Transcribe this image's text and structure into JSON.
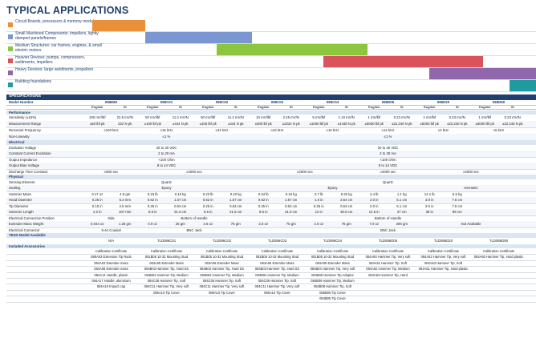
{
  "title": "TYPICAL APPLICATIONS",
  "applications": [
    {
      "label": "Circuit Boards, processors & memory modules",
      "color": "#e8913a",
      "bar_start": 0.0,
      "bar_end": 0.12
    },
    {
      "label": "Small Machined Components: impellers, lightly damped panels/frames",
      "color": "#7b97d2",
      "bar_start": 0.12,
      "bar_end": 0.36
    },
    {
      "label": "Medium Structures: car frames, engines, & small electric motors",
      "color": "#8cc63f",
      "bar_start": 0.28,
      "bar_end": 0.62
    },
    {
      "label": "Heavier Devices: pumps, compressors, weldments, impellers",
      "color": "#d9535a",
      "bar_start": 0.52,
      "bar_end": 0.88
    },
    {
      "label": "Heavy Devices: large weldments, propellers",
      "color": "#9067ad",
      "bar_start": 0.76,
      "bar_end": 1.0
    },
    {
      "label": "Building foundations",
      "color": "#1f9ba0",
      "bar_start": 0.94,
      "bar_end": 1.0
    }
  ],
  "specs": {
    "band": "SPECIFICATIONS",
    "model_label": "Model Number",
    "models": [
      "086E80",
      "086C01",
      "086C02",
      "086C03",
      "086C04",
      "086D05",
      "086D20",
      "086D50"
    ],
    "english": "English",
    "si": "SI",
    "sections": {
      "performance": "Performance",
      "electrical": "Electrical",
      "physical": "Physical",
      "teds": "TEDS Model Available",
      "accessories": "Included Accessories"
    },
    "perf_rows": [
      {
        "label": "Sensitivity (±15%)",
        "cells": [
          "100 mV/lbf",
          "22.5 mV/N",
          "50 mV/lbf",
          "11.2 mV/N",
          "50 mV/lbf",
          "11.2 mV/N",
          "10 mV/lbf",
          "2.25 mV/N",
          "5 mV/lbf",
          "1.10 mV/N",
          "1 mV/lbf",
          "0.23 mV/N",
          "1 mV/lbf",
          "0.23 mV/N",
          "1 mV/lbf",
          "0.23 mV/N"
        ]
      },
      {
        "label": "Measurement Range",
        "cells": [
          "±50 lbf pk",
          "222 N pk",
          "±100 lbf pk",
          "±444 N pk",
          "±100 lbf pk",
          "±444 N pk",
          "±500 lbf pk",
          "±2224 N pk",
          "±1000 lbf pk",
          "±4448 N pk",
          "±5000 lbf pk",
          "±22,240 N pk",
          "±5000 lbf pk",
          "±22,240 N pk",
          "±5000 lbf pk",
          "±22,240 N pk"
        ]
      },
      {
        "label": "Resonant Frequency",
        "spans": [
          {
            "text": "≥100 kHz",
            "from": 0,
            "to": 1
          },
          {
            "text": "≥15 kHz",
            "from": 2,
            "to": 3
          },
          {
            "text": "≥22 kHz",
            "from": 4,
            "to": 5
          },
          {
            "text": "≥22 kHz",
            "from": 6,
            "to": 7
          },
          {
            "text": "≥15 kHz",
            "from": 8,
            "to": 9
          },
          {
            "text": "≥12 kHz",
            "from": 10,
            "to": 11
          },
          {
            "text": "≥2 kHz",
            "from": 12,
            "to": 13
          },
          {
            "text": "≥5 kHz",
            "from": 14,
            "to": 15
          }
        ]
      },
      {
        "label": "Non-Linearity",
        "spans": [
          {
            "text": "≤1 %",
            "from": 0,
            "to": 5
          },
          {
            "text": "≤1 %",
            "from": 6,
            "to": 15
          }
        ]
      }
    ],
    "elec_rows": [
      {
        "label": "Excitation Voltage",
        "spans": [
          {
            "text": "20 to 30 VDC",
            "from": 0,
            "to": 5
          },
          {
            "text": "20 to 30 VDC",
            "from": 6,
            "to": 15
          }
        ]
      },
      {
        "label": "Constant Current Excitation",
        "spans": [
          {
            "text": "2 to 20 mA",
            "from": 0,
            "to": 5
          },
          {
            "text": "2 to 20 mA",
            "from": 6,
            "to": 15
          }
        ]
      },
      {
        "label": "Output Impedance",
        "spans": [
          {
            "text": "<100 Ohm",
            "from": 0,
            "to": 5
          },
          {
            "text": "<100 Ohm",
            "from": 6,
            "to": 15
          }
        ]
      },
      {
        "label": "Output Bias Voltage",
        "spans": [
          {
            "text": "8 to 14 VDC",
            "from": 0,
            "to": 5
          },
          {
            "text": "8 to 14 VDC",
            "from": 6,
            "to": 15
          }
        ]
      },
      {
        "label": "Discharge Time Constant",
        "spans": [
          {
            "text": "≥500 sec",
            "from": 0,
            "to": 1
          },
          {
            "text": "≥2000 sec",
            "from": 2,
            "to": 5
          },
          {
            "text": "≥2000 sec",
            "from": 6,
            "to": 9
          },
          {
            "text": "≥2000 sec",
            "from": 10,
            "to": 11
          },
          {
            "text": "≥2000 sec",
            "from": 12,
            "to": 15
          }
        ]
      }
    ],
    "phys_rows": [
      {
        "label": "Sensing Element",
        "spans": [
          {
            "text": "Quartz",
            "from": 0,
            "to": 5
          },
          {
            "text": "Quartz",
            "from": 6,
            "to": 15
          }
        ]
      },
      {
        "label": "Sealing",
        "spans": [
          {
            "text": "Epoxy",
            "from": 0,
            "to": 5
          },
          {
            "text": "Epoxy",
            "from": 6,
            "to": 11
          },
          {
            "text": "Hermetic",
            "from": 12,
            "to": 15
          }
        ]
      },
      {
        "label": "Hammer Mass",
        "cells": [
          "0.17 oz",
          "4.8 gm",
          "0.23 lb",
          "0.10 kg",
          "0.23 lb",
          "0.10 kg",
          "0.34 lb",
          "0.16 kg",
          "0.7 lb",
          "0.32 kg",
          "2.4 lb",
          "1.1 kg",
          "12.1 lb",
          "5.5 kg",
          "",
          ""
        ]
      },
      {
        "label": "Head Diameter",
        "cells": [
          "0.25 in",
          "6.3 mm",
          "0.62 in",
          "1.57 cm",
          "0.62 in",
          "1.57 cm",
          "0.62 in",
          "1.57 cm",
          "1.0 in",
          "2.54 cm",
          "2.0 in",
          "5.1 cm",
          "3.0 in",
          "7.6 cm",
          "",
          ""
        ]
      },
      {
        "label": "Tip Diameter",
        "cells": [
          "0.10 in",
          "2.5 mm",
          "0.25 in",
          "0.63 cm",
          "0.25 in",
          "0.63 cm",
          "0.25 in",
          "0.63 cm",
          "0.25 in",
          "0.63 cm",
          "2.0 in",
          "5.1 cm",
          "3.0 in",
          "7.6 cm",
          "",
          ""
        ]
      },
      {
        "label": "Hammer Length",
        "cells": [
          "4.2 in",
          "107 mm",
          "8.5 in",
          "21.6 cm",
          "8.5 in",
          "21.6 cm",
          "8.5 in",
          "21.6 cm",
          "12 in",
          "30.5 cm",
          "14.5 in",
          "37 cm",
          "35 in",
          "89 cm",
          "",
          ""
        ]
      },
      {
        "label": "Electrical Connection Position",
        "spans": [
          {
            "text": "Side",
            "from": 0,
            "to": 1
          },
          {
            "text": "Bottom of Handle",
            "from": 2,
            "to": 5
          },
          {
            "text": "Bottom of Handle",
            "from": 6,
            "to": 15
          }
        ]
      },
      {
        "label": "Extender Mass Weight",
        "cells": [
          "0.044 oz",
          "1.25 gm",
          "0.9 oz",
          "25 gm",
          "2.6 oz",
          "75 gm",
          "2.6 oz",
          "75 gm",
          "2.6 oz",
          "75 gm",
          "7.0 oz",
          "200 gm",
          "",
          "",
          "",
          ""
        ],
        "extra": [
          {
            "text": "Not Available",
            "from": 12,
            "to": 15
          }
        ]
      },
      {
        "label": "Electrical Connector",
        "spans": [
          {
            "text": "5-44 Coaxial",
            "from": 0,
            "to": 1
          },
          {
            "text": "BNC Jack",
            "from": 2,
            "to": 5
          },
          {
            "text": "BNC Jack",
            "from": 6,
            "to": 15
          }
        ]
      }
    ],
    "teds": [
      {
        "text": "N/A",
        "from": 0,
        "to": 1
      },
      {
        "text": "TLD086C01",
        "from": 2,
        "to": 3
      },
      {
        "text": "TLD086C02",
        "from": 4,
        "to": 5
      },
      {
        "text": "TLD086C03",
        "from": 6,
        "to": 7
      },
      {
        "text": "TLD086C04",
        "from": 8,
        "to": 9
      },
      {
        "text": "TLD086D05",
        "from": 10,
        "to": 11
      },
      {
        "text": "TLD086D20",
        "from": 12,
        "to": 13
      },
      {
        "text": "TLD086D50",
        "from": 14,
        "to": 15
      }
    ],
    "accessories": [
      [
        "Calibration Certificate",
        "Calibration Certificate",
        "Calibration Certificate",
        "Calibration Certificate",
        "Calibration Certificate",
        "Calibration Certificate",
        "Calibration Certificate",
        "Calibration Certificate"
      ],
      [
        "085A03 Extension Tip Rods",
        "081B05 10-32 Mounting Stud",
        "081B05 10-32 Mounting Stud",
        "081B05 10-32 Mounting Stud",
        "081B05 10-32 Mounting Stud",
        "084A50 Hammer Tip, Very soft",
        "084A52 Hammer Tip, Very soft",
        "084A60 Hammer Tip, Hard plastic"
      ],
      [
        "084A03 Extender mass",
        "084A05 Extender Mass",
        "084A05 Extender Mass",
        "084A05 Extender Mass",
        "084A05 Extender Mass",
        "084A51 Hammer Tip, Soft",
        "084A53 Hammer Tip, Soft",
        ""
      ],
      [
        "084A09 Extender mass",
        "084B03 Hammer Tip, Hard SS",
        "084B03 Hammer Tip, Hard SS",
        "084B03 Hammer Tip, Hard SS",
        "084B04 Hammer Tip, Very soft",
        "084A52 Hammer Tip, Medium",
        "084A61 Hammer Tip, Hard plastic",
        ""
      ],
      [
        "084A14 Handle, plastic",
        "084B04 Hammer Tip, Medium",
        "084B04 Hammer Tip, Medium",
        "084B04 Hammer Tip, Medium",
        "084B05 Hammer Tip Adaptor",
        "084A53 Hammer Tip, Hard",
        "",
        ""
      ],
      [
        "084A17 Handle, aluminum",
        "084C05 Hammer Tip, Soft",
        "084C05 Hammer Tip, Soft",
        "084C05 Hammer Tip, Soft",
        "084B06 Hammer Tip, Medium",
        "",
        "",
        ""
      ],
      [
        "084A10 Impact cap",
        "084C11 Hammer Tip, Very soft",
        "084C11 Hammer Tip, Very soft",
        "084C11 Hammer Tip, Very soft",
        "084B08 Hammer Tip, Soft",
        "",
        "",
        ""
      ],
      [
        "",
        "085A10 Tip Cover",
        "085A10 Tip Cover",
        "085A10 Tip Cover",
        "085B06 Tip Cover",
        "",
        "",
        ""
      ],
      [
        "",
        "",
        "",
        "",
        "084B05 Tip Cover",
        "",
        "",
        ""
      ]
    ]
  }
}
